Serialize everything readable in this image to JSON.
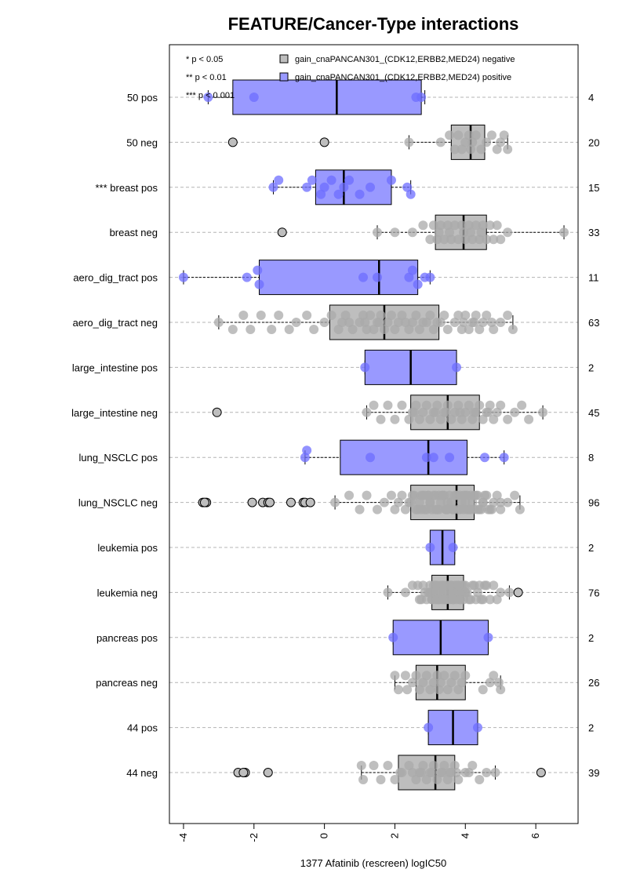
{
  "chart_data": {
    "type": "box",
    "title": "FEATURE/Cancer-Type interactions",
    "xlabel": "1377 Afatinib (rescreen) logIC50",
    "xlim": [
      -4.4,
      7.2
    ],
    "xticks": [
      -4,
      -2,
      0,
      2,
      4,
      6
    ],
    "xtick_labels": [
      "-4",
      "-2",
      "0",
      "2",
      "4",
      "6"
    ],
    "grid": "horizontal dashed",
    "legend_position": "top",
    "significance_legend": [
      "* p < 0.05",
      "** p < 0.01",
      "*** p < 0.001"
    ],
    "series": [
      {
        "name": "gain_cnaPANCAN301_(CDK12,ERBB2,MED24) negative",
        "color": "#bebebe"
      },
      {
        "name": "gain_cnaPANCAN301_(CDK12,ERBB2,MED24) positive",
        "color": "#9999ff"
      }
    ],
    "rows": [
      {
        "label": "50 pos",
        "n": "4",
        "series": 1,
        "whisker_low": -3.3,
        "q1": -2.6,
        "median": 0.35,
        "q3": 2.75,
        "whisker_high": 2.85,
        "points": [
          -3.3,
          -2.0,
          2.6,
          2.75
        ],
        "jitter": [
          0,
          0,
          0,
          0
        ]
      },
      {
        "label": "50 neg",
        "n": "20",
        "series": 0,
        "whisker_low": 2.4,
        "q1": 3.6,
        "median": 4.15,
        "q3": 4.55,
        "whisker_high": 5.2,
        "points": [
          -2.6,
          0.0,
          2.4,
          3.3,
          3.55,
          3.7,
          3.8,
          3.9,
          4.0,
          4.1,
          4.15,
          4.2,
          4.3,
          4.45,
          4.6,
          4.75,
          4.9,
          5.0,
          5.1,
          5.2
        ],
        "jitter": [
          0,
          0,
          0,
          0,
          -1,
          1,
          -1,
          1,
          0,
          -1,
          1,
          0,
          -1,
          1,
          0,
          -1,
          1,
          0,
          -1,
          1
        ],
        "outliers": [
          -2.6,
          0.0
        ]
      },
      {
        "label": "*** breast pos",
        "n": "15",
        "series": 1,
        "whisker_low": -1.45,
        "q1": -0.25,
        "median": 0.55,
        "q3": 1.9,
        "whisker_high": 2.45,
        "points": [
          -1.45,
          -1.3,
          -0.5,
          -0.35,
          -0.1,
          0.0,
          0.2,
          0.4,
          0.55,
          0.7,
          1.0,
          1.3,
          1.9,
          2.35,
          2.45
        ],
        "jitter": [
          0,
          -1,
          0,
          -1,
          1,
          0,
          -1,
          1,
          0,
          -1,
          1,
          0,
          -1,
          0,
          1
        ]
      },
      {
        "label": "breast neg",
        "n": "33",
        "series": 0,
        "whisker_low": 1.5,
        "q1": 3.15,
        "median": 3.95,
        "q3": 4.6,
        "whisker_high": 6.8,
        "points": [
          -1.2,
          1.5,
          2.0,
          2.5,
          2.8,
          3.0,
          3.1,
          3.2,
          3.3,
          3.4,
          3.5,
          3.6,
          3.7,
          3.8,
          3.9,
          3.95,
          4.0,
          4.1,
          4.2,
          4.3,
          4.4,
          4.5,
          4.6,
          4.7,
          4.8,
          4.9,
          5.0,
          5.2,
          6.8,
          3.25,
          3.55,
          4.15,
          4.45
        ],
        "jitter": [
          0,
          0,
          0,
          0,
          -1,
          1,
          -1,
          1,
          -1,
          1,
          -1,
          1,
          -1,
          1,
          -1,
          0,
          1,
          -1,
          1,
          -1,
          1,
          -1,
          1,
          -1,
          1,
          -1,
          1,
          0,
          0,
          0,
          0,
          0,
          0
        ],
        "outliers": [
          -1.2
        ]
      },
      {
        "label": "aero_dig_tract pos",
        "n": "11",
        "series": 1,
        "whisker_low": -4.0,
        "q1": -1.85,
        "median": 1.55,
        "q3": 2.65,
        "whisker_high": 3.0,
        "points": [
          -4.0,
          -2.2,
          -1.9,
          -1.85,
          1.1,
          1.5,
          2.4,
          2.5,
          2.65,
          2.85,
          3.0
        ],
        "jitter": [
          0,
          0,
          -1,
          1,
          0,
          0,
          0,
          -1,
          1,
          0,
          0
        ]
      },
      {
        "label": "aero_dig_tract neg",
        "n": "63",
        "series": 0,
        "whisker_low": -3.0,
        "q1": 0.15,
        "median": 1.7,
        "q3": 3.25,
        "whisker_high": 5.35,
        "points": [
          -3.0,
          -2.6,
          -2.3,
          -2.1,
          -1.8,
          -1.5,
          -1.3,
          -1.0,
          -0.8,
          -0.5,
          -0.3,
          0.0,
          0.2,
          0.4,
          0.5,
          0.6,
          0.8,
          1.0,
          1.1,
          1.2,
          1.3,
          1.4,
          1.5,
          1.6,
          1.7,
          1.8,
          1.9,
          2.0,
          2.1,
          2.2,
          2.4,
          2.5,
          2.6,
          2.7,
          2.8,
          3.0,
          3.1,
          3.2,
          3.4,
          3.5,
          3.7,
          3.8,
          3.9,
          4.0,
          4.1,
          4.2,
          4.3,
          4.4,
          4.5,
          4.6,
          4.8,
          5.0,
          5.2,
          5.35,
          0.7,
          1.15,
          1.55,
          2.3,
          2.9,
          3.3,
          3.95,
          4.25,
          4.75
        ],
        "jitter": [
          0,
          1,
          -1,
          1,
          -1,
          1,
          -1,
          1,
          0,
          -1,
          1,
          0,
          -1,
          1,
          0,
          -1,
          1,
          0,
          -1,
          1,
          -1,
          1,
          0,
          -1,
          1,
          0,
          -1,
          1,
          0,
          -1,
          1,
          0,
          -1,
          1,
          0,
          -1,
          1,
          0,
          -1,
          1,
          0,
          -1,
          1,
          -1,
          1,
          0,
          -1,
          1,
          0,
          -1,
          1,
          0,
          -1,
          1,
          0,
          0,
          0,
          0,
          0,
          0,
          0,
          0,
          0
        ]
      },
      {
        "label": "large_intestine pos",
        "n": "2",
        "series": 1,
        "whisker_low": 1.15,
        "q1": 1.15,
        "median": 2.45,
        "q3": 3.75,
        "whisker_high": 3.75,
        "points": [
          1.15,
          3.75
        ],
        "jitter": [
          0,
          0
        ]
      },
      {
        "label": "large_intestine neg",
        "n": "45",
        "series": 0,
        "whisker_low": 1.2,
        "q1": 2.45,
        "median": 3.5,
        "q3": 4.4,
        "whisker_high": 6.2,
        "points": [
          -3.05,
          1.2,
          1.4,
          1.6,
          1.8,
          2.0,
          2.2,
          2.4,
          2.5,
          2.6,
          2.7,
          2.8,
          2.9,
          3.0,
          3.1,
          3.2,
          3.3,
          3.4,
          3.5,
          3.6,
          3.7,
          3.8,
          3.9,
          4.0,
          4.1,
          4.2,
          4.3,
          4.4,
          4.5,
          4.6,
          4.7,
          4.8,
          4.9,
          5.0,
          5.2,
          5.4,
          5.6,
          5.8,
          6.2,
          2.55,
          3.15,
          3.45,
          3.85,
          4.25,
          4.65
        ],
        "jitter": [
          0,
          0,
          -1,
          1,
          -1,
          1,
          -1,
          1,
          0,
          -1,
          1,
          0,
          -1,
          1,
          0,
          -1,
          1,
          0,
          -1,
          1,
          0,
          -1,
          1,
          0,
          -1,
          1,
          0,
          -1,
          1,
          0,
          -1,
          1,
          0,
          -1,
          1,
          0,
          -1,
          1,
          0,
          0,
          0,
          0,
          0,
          0,
          0
        ],
        "outliers": [
          -3.05
        ]
      },
      {
        "label": "lung_NSCLC pos",
        "n": "8",
        "series": 1,
        "whisker_low": -0.55,
        "q1": 0.45,
        "median": 2.95,
        "q3": 4.05,
        "whisker_high": 5.1,
        "points": [
          -0.55,
          -0.5,
          1.3,
          2.9,
          3.1,
          3.55,
          4.55,
          5.1
        ],
        "jitter": [
          0,
          -1,
          0,
          0,
          0,
          0,
          0,
          0
        ]
      },
      {
        "label": "lung_NSCLC neg",
        "n": "96",
        "series": 0,
        "whisker_low": 0.3,
        "q1": 2.45,
        "median": 3.75,
        "q3": 4.25,
        "whisker_high": 5.55,
        "points": [
          -3.45,
          -3.35,
          -3.4,
          -2.05,
          -1.75,
          -1.6,
          -1.55,
          -0.95,
          -0.6,
          -0.55,
          -0.4,
          0.3,
          0.7,
          1.0,
          1.2,
          1.5,
          1.7,
          1.9,
          2.0,
          2.1,
          2.2,
          2.3,
          2.4,
          2.5,
          2.6,
          2.7,
          2.8,
          2.9,
          3.0,
          3.1,
          3.2,
          3.3,
          3.4,
          3.5,
          3.6,
          3.7,
          3.8,
          3.9,
          4.0,
          4.1,
          4.2,
          4.3,
          4.4,
          4.5,
          4.6,
          4.7,
          4.8,
          4.9,
          5.0,
          5.2,
          5.4,
          5.55,
          2.55,
          2.65,
          2.75,
          2.85,
          2.95,
          3.05,
          3.15,
          3.25,
          3.35,
          3.45,
          3.55,
          3.65,
          3.75,
          3.85,
          3.95,
          4.05,
          4.15,
          4.25,
          4.35,
          4.45,
          4.55,
          4.65,
          2.45,
          3.0,
          3.5,
          4.0,
          4.5,
          5.0,
          3.25,
          3.75,
          4.25,
          2.75,
          3.95,
          4.15,
          3.35,
          2.85,
          4.75,
          3.65,
          4.05,
          3.45,
          2.95,
          4.35,
          3.85,
          3.15
        ],
        "jitter": [
          -1,
          1,
          0,
          0,
          0,
          0,
          1,
          0,
          0,
          0,
          1,
          0,
          -1,
          1,
          -1,
          1,
          0,
          -1,
          1,
          0,
          -1,
          1,
          0,
          -1,
          1,
          0,
          -1,
          1,
          0,
          -1,
          1,
          0,
          -1,
          1,
          0,
          -1,
          1,
          0,
          -1,
          1,
          0,
          -1,
          1,
          0,
          -1,
          1,
          0,
          -1,
          1,
          0,
          -1,
          1,
          -1,
          1,
          -1,
          1,
          -1,
          1,
          -1,
          1,
          -1,
          1,
          -1,
          1,
          -1,
          1,
          -1,
          1,
          -1,
          1,
          -1,
          1,
          -1,
          1,
          0,
          0,
          0,
          0,
          0,
          0,
          -1,
          -1,
          -1,
          1,
          1,
          1,
          -1,
          -1,
          1,
          1,
          -1,
          1,
          -1,
          1,
          -1,
          1
        ],
        "outliers": [
          -3.45,
          -3.35,
          -3.4,
          -2.05,
          -1.75,
          -1.6,
          -1.55,
          -0.95,
          -0.6,
          -0.55,
          -0.4
        ]
      },
      {
        "label": "leukemia pos",
        "n": "2",
        "series": 1,
        "whisker_low": 3.0,
        "q1": 3.0,
        "median": 3.35,
        "q3": 3.7,
        "whisker_high": 3.7,
        "points": [
          3.0,
          3.65
        ],
        "jitter": [
          0,
          0
        ]
      },
      {
        "label": "leukemia neg",
        "n": "76",
        "series": 0,
        "whisker_low": 1.8,
        "q1": 3.05,
        "median": 3.5,
        "q3": 3.95,
        "whisker_high": 5.25,
        "points": [
          1.8,
          2.3,
          2.5,
          2.7,
          2.8,
          2.9,
          3.0,
          3.05,
          3.1,
          3.15,
          3.2,
          3.25,
          3.3,
          3.35,
          3.4,
          3.45,
          3.5,
          3.55,
          3.6,
          3.65,
          3.7,
          3.75,
          3.8,
          3.85,
          3.9,
          3.95,
          4.0,
          4.1,
          4.2,
          4.3,
          4.4,
          4.5,
          4.6,
          4.7,
          4.8,
          4.9,
          5.0,
          5.25,
          5.5,
          2.95,
          3.0,
          3.1,
          3.2,
          3.3,
          3.4,
          3.5,
          3.6,
          3.7,
          3.8,
          3.9,
          4.0,
          3.05,
          3.15,
          3.25,
          3.35,
          3.45,
          3.55,
          3.65,
          3.75,
          3.85,
          3.95,
          2.85,
          4.05,
          4.15,
          4.25,
          4.35,
          2.75,
          2.65,
          4.45,
          4.55,
          3.4,
          3.6,
          3.2,
          3.8,
          3.0,
          4.0
        ],
        "jitter": [
          0,
          0,
          -1,
          1,
          -1,
          1,
          -1,
          1,
          -1,
          1,
          -1,
          1,
          -1,
          1,
          -1,
          1,
          -1,
          1,
          -1,
          1,
          -1,
          1,
          -1,
          1,
          -1,
          1,
          -1,
          1,
          -1,
          1,
          -1,
          1,
          -1,
          1,
          -1,
          1,
          0,
          0,
          0,
          0,
          0,
          0,
          0,
          0,
          0,
          0,
          0,
          0,
          0,
          0,
          0,
          1,
          -1,
          1,
          -1,
          1,
          -1,
          1,
          -1,
          1,
          -1,
          0,
          0,
          1,
          -1,
          0,
          1,
          -1,
          1,
          -1,
          1,
          -1,
          1,
          -1,
          0,
          0
        ],
        "outliers": [
          5.5
        ]
      },
      {
        "label": "pancreas pos",
        "n": "2",
        "series": 1,
        "whisker_low": 1.95,
        "q1": 1.95,
        "median": 3.3,
        "q3": 4.65,
        "whisker_high": 4.65,
        "points": [
          1.95,
          4.65
        ],
        "jitter": [
          0,
          0
        ]
      },
      {
        "label": "pancreas neg",
        "n": "26",
        "series": 0,
        "whisker_low": 2.0,
        "q1": 2.6,
        "median": 3.2,
        "q3": 4.0,
        "whisker_high": 5.0,
        "points": [
          2.0,
          2.1,
          2.3,
          2.35,
          2.5,
          2.6,
          2.7,
          2.8,
          2.9,
          3.0,
          3.1,
          3.2,
          3.25,
          3.3,
          3.4,
          3.5,
          3.6,
          3.7,
          3.8,
          3.9,
          4.0,
          4.5,
          4.7,
          4.8,
          5.0,
          4.95
        ],
        "jitter": [
          -1,
          1,
          -1,
          1,
          0,
          -1,
          1,
          0,
          -1,
          1,
          0,
          -1,
          1,
          0,
          -1,
          1,
          0,
          -1,
          1,
          0,
          -1,
          1,
          0,
          -1,
          1,
          0
        ]
      },
      {
        "label": "44 pos",
        "n": "2",
        "series": 1,
        "whisker_low": 2.95,
        "q1": 2.95,
        "median": 3.65,
        "q3": 4.35,
        "whisker_high": 4.35,
        "points": [
          2.95,
          4.35
        ],
        "jitter": [
          0,
          0
        ]
      },
      {
        "label": "44 neg",
        "n": "39",
        "series": 0,
        "whisker_low": 1.05,
        "q1": 2.1,
        "median": 3.15,
        "q3": 3.7,
        "whisker_high": 4.85,
        "points": [
          -2.45,
          -2.25,
          -2.3,
          -1.6,
          1.05,
          1.1,
          1.4,
          1.6,
          1.8,
          2.0,
          2.2,
          2.4,
          2.6,
          2.7,
          2.8,
          2.9,
          3.0,
          3.1,
          3.2,
          3.3,
          3.4,
          3.5,
          3.6,
          3.7,
          3.8,
          4.0,
          4.2,
          4.4,
          4.6,
          4.85,
          6.15,
          2.5,
          2.75,
          3.05,
          3.35,
          3.55,
          3.75,
          4.1,
          2.15
        ],
        "jitter": [
          0,
          0,
          1,
          0,
          -1,
          1,
          -1,
          1,
          -1,
          1,
          0,
          -1,
          1,
          0,
          -1,
          1,
          0,
          -1,
          1,
          0,
          -1,
          1,
          0,
          -1,
          1,
          0,
          -1,
          1,
          0,
          0,
          0,
          0,
          0,
          0,
          0,
          0,
          0,
          0,
          0
        ],
        "outliers": [
          -2.45,
          -2.25,
          -2.3,
          -1.6,
          6.15
        ]
      }
    ]
  },
  "colors": {
    "negative": "#bebebe",
    "positive": "#9999ff",
    "point_negative": "#a9a9a9",
    "point_positive": "#6e6eff",
    "grid": "#b4b4b4"
  }
}
